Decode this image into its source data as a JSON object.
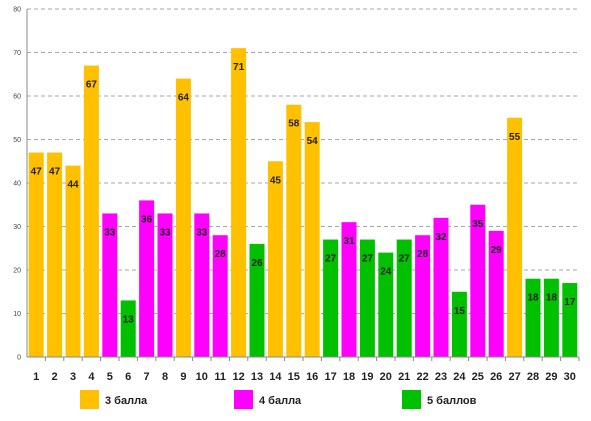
{
  "chart_data": {
    "type": "bar",
    "categories": [
      "1",
      "2",
      "3",
      "4",
      "5",
      "6",
      "7",
      "8",
      "9",
      "10",
      "11",
      "12",
      "13",
      "14",
      "15",
      "16",
      "17",
      "18",
      "19",
      "20",
      "21",
      "22",
      "23",
      "24",
      "25",
      "26",
      "27",
      "28",
      "29",
      "30"
    ],
    "values": [
      47,
      47,
      44,
      67,
      33,
      13,
      36,
      33,
      64,
      33,
      28,
      71,
      26,
      45,
      58,
      54,
      27,
      31,
      27,
      24,
      27,
      28,
      32,
      15,
      35,
      29,
      55,
      18,
      18,
      17
    ],
    "groups": [
      "3",
      "3",
      "3",
      "3",
      "4",
      "5",
      "4",
      "4",
      "3",
      "4",
      "4",
      "3",
      "5",
      "3",
      "3",
      "3",
      "5",
      "4",
      "5",
      "5",
      "5",
      "4",
      "4",
      "5",
      "4",
      "4",
      "3",
      "5",
      "5",
      "5"
    ],
    "ylim": [
      0,
      80
    ],
    "yticks": [
      0,
      10,
      20,
      30,
      40,
      50,
      60,
      70,
      80
    ],
    "grid": true,
    "legend_placement": "bottom",
    "series": [
      {
        "key": "3",
        "name": "3 балла",
        "color": "#FFC000"
      },
      {
        "key": "4",
        "name": "4 балла",
        "color": "#FF00FF"
      },
      {
        "key": "5",
        "name": "5 баллов",
        "color": "#00C000"
      }
    ]
  }
}
